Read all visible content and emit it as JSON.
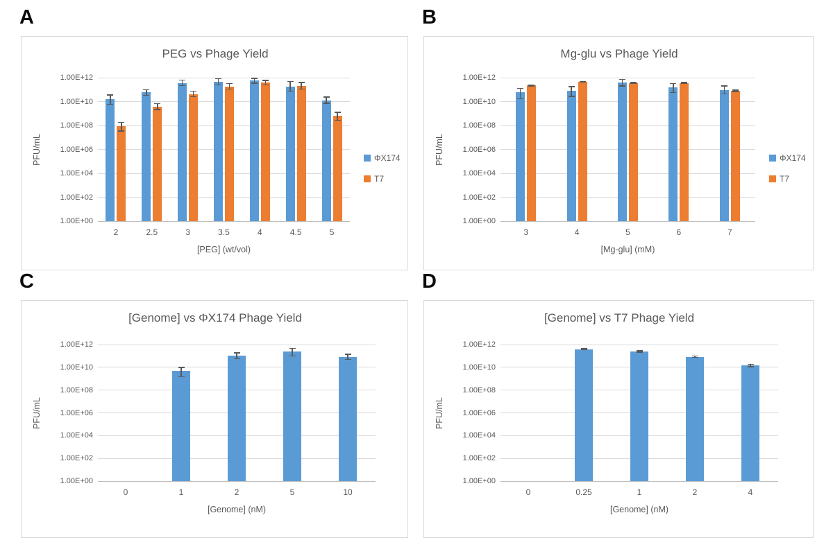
{
  "figure": {
    "background": "#ffffff",
    "panel_border_color": "#d9d9d9",
    "gridline_color": "#d9d9d9",
    "axis_line_color": "#bfbfbf",
    "text_color": "#595959",
    "error_bar_color": "#595959",
    "series_colors": {
      "phix174_blue": "#5B9BD5",
      "t7_orange": "#ED7D31"
    }
  },
  "panels": [
    {
      "letter": "A",
      "chart_data": {
        "type": "bar",
        "title": "PEG vs Phage Yield",
        "xlabel": "[PEG] (wt/vol)",
        "ylabel": "PFU/mL",
        "y_scale": "log",
        "ylim": [
          1,
          1000000000000
        ],
        "y_tick_labels": [
          "1.00E+00",
          "1.00E+02",
          "1.00E+04",
          "1.00E+06",
          "1.00E+08",
          "1.00E+10",
          "1.00E+12"
        ],
        "grid": true,
        "legend_position": "right",
        "categories": [
          "2",
          "2.5",
          "3",
          "3.5",
          "4",
          "4.5",
          "5"
        ],
        "series": [
          {
            "name": "ΦX174",
            "color": "#5B9BD5",
            "values": [
              16000000000.0,
              63000000000.0,
              360000000000.0,
              430000000000.0,
              560000000000.0,
              180000000000.0,
              13000000000.0
            ],
            "err_low": [
              6000000000.0,
              34000000000.0,
              210000000000.0,
              240000000000.0,
              350000000000.0,
              72000000000.0,
              7000000000.0
            ],
            "err_high": [
              35000000000.0,
              100000000000.0,
              630000000000.0,
              800000000000.0,
              900000000000.0,
              470000000000.0,
              24000000000.0
            ]
          },
          {
            "name": "T7",
            "color": "#ED7D31",
            "values": [
              90000000.0,
              3500000000.0,
              42000000000.0,
              180000000000.0,
              370000000000.0,
              210000000000.0,
              650000000.0
            ],
            "err_low": [
              35000000.0,
              2200000000.0,
              25000000000.0,
              110000000000.0,
              240000000000.0,
              110000000000.0,
              280000000.0
            ],
            "err_high": [
              180000000.0,
              6500000000.0,
              72000000000.0,
              320000000000.0,
              600000000000.0,
              400000000000.0,
              1300000000.0
            ]
          }
        ]
      }
    },
    {
      "letter": "B",
      "chart_data": {
        "type": "bar",
        "title": "Mg-glu vs Phage Yield",
        "xlabel": "[Mg-glu] (mM)",
        "ylabel": "PFU/mL",
        "y_scale": "log",
        "ylim": [
          1,
          1000000000000
        ],
        "y_tick_labels": [
          "1.00E+00",
          "1.00E+02",
          "1.00E+04",
          "1.00E+06",
          "1.00E+08",
          "1.00E+10",
          "1.00E+12"
        ],
        "grid": true,
        "legend_position": "right",
        "categories": [
          "3",
          "4",
          "5",
          "6",
          "7"
        ],
        "series": [
          {
            "name": "ΦX174",
            "color": "#5B9BD5",
            "values": [
              58000000000.0,
              83000000000.0,
              390000000000.0,
              150000000000.0,
              91000000000.0
            ],
            "err_low": [
              17000000000.0,
              27000000000.0,
              200000000000.0,
              58000000000.0,
              42000000000.0
            ],
            "err_high": [
              130000000000.0,
              180000000000.0,
              700000000000.0,
              320000000000.0,
              200000000000.0
            ]
          },
          {
            "name": "T7",
            "color": "#ED7D31",
            "values": [
              220000000000.0,
              450000000000.0,
              360000000000.0,
              360000000000.0,
              80000000000.0
            ],
            "err_low": [
              200000000000.0,
              420000000000.0,
              320000000000.0,
              330000000000.0,
              70000000000.0
            ],
            "err_high": [
              240000000000.0,
              490000000000.0,
              400000000000.0,
              400000000000.0,
              92000000000.0
            ]
          }
        ]
      }
    },
    {
      "letter": "C",
      "chart_data": {
        "type": "bar",
        "title": "[Genome] vs ΦX174 Phage Yield",
        "xlabel": "[Genome] (nM)",
        "ylabel": "PFU/mL",
        "y_scale": "log",
        "ylim": [
          1,
          1000000000000
        ],
        "y_tick_labels": [
          "1.00E+00",
          "1.00E+02",
          "1.00E+04",
          "1.00E+06",
          "1.00E+08",
          "1.00E+10",
          "1.00E+12"
        ],
        "grid": true,
        "legend_position": "none",
        "categories": [
          "0",
          "1",
          "2",
          "5",
          "10"
        ],
        "series": [
          {
            "name": "ΦX174",
            "color": "#5B9BD5",
            "values": [
              null,
              5000000000.0,
              110000000000.0,
              250000000000.0,
              80000000000.0
            ],
            "err_low": [
              null,
              1500000000.0,
              56000000000.0,
              100000000000.0,
              48000000000.0
            ],
            "err_high": [
              null,
              10000000000.0,
              190000000000.0,
              470000000000.0,
              140000000000.0
            ]
          }
        ]
      }
    },
    {
      "letter": "D",
      "chart_data": {
        "type": "bar",
        "title": "[Genome] vs T7 Phage Yield",
        "xlabel": "[Genome] (nM)",
        "ylabel": "PFU/mL",
        "y_scale": "log",
        "ylim": [
          1,
          1000000000000
        ],
        "y_tick_labels": [
          "1.00E+00",
          "1.00E+02",
          "1.00E+04",
          "1.00E+06",
          "1.00E+08",
          "1.00E+10",
          "1.00E+12"
        ],
        "grid": true,
        "legend_position": "none",
        "categories": [
          "0",
          "0.25",
          "1",
          "2",
          "4"
        ],
        "series": [
          {
            "name": "T7",
            "color": "#5B9BD5",
            "values": [
              null,
              400000000000.0,
              250000000000.0,
              85000000000.0,
              14000000000.0
            ],
            "err_low": [
              null,
              370000000000.0,
              220000000000.0,
              75000000000.0,
              11000000000.0
            ],
            "err_high": [
              null,
              440000000000.0,
              280000000000.0,
              100000000000.0,
              18000000000.0
            ]
          }
        ]
      }
    }
  ]
}
